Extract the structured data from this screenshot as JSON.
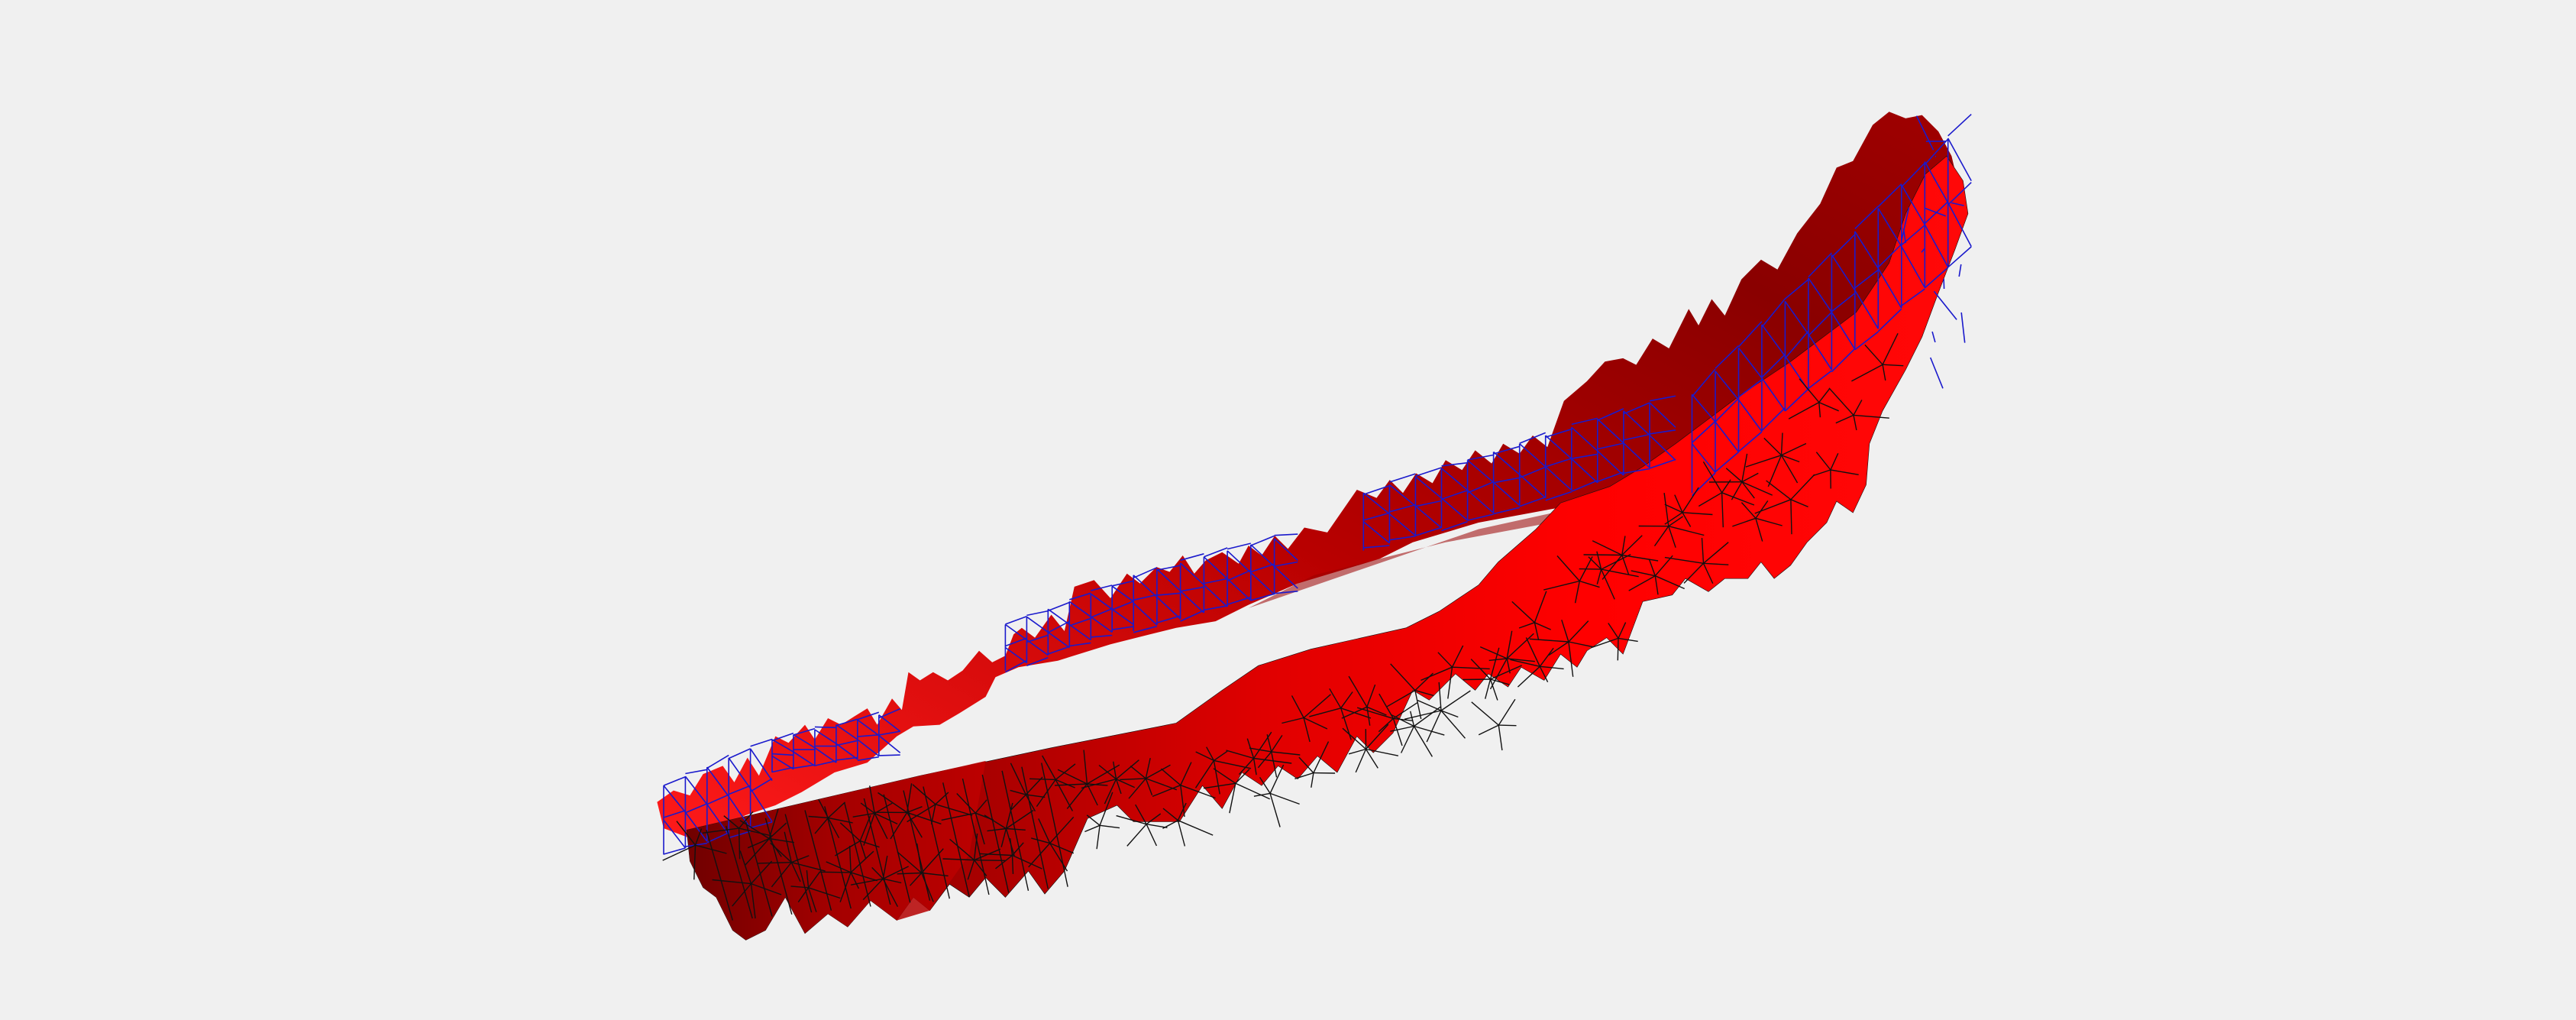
{
  "scene": {
    "description_label": "",
    "colors": {
      "background": "#f0f0f0",
      "surface_bright": "#ff0000",
      "surface_dark": "#8a0000",
      "surface_mid": "#c40000",
      "wireframe_back": "#1a1acc",
      "wireframe_front": "#111111"
    },
    "objects": [
      {
        "name": "deformed-ring-surface",
        "kind": "triangulated mesh"
      },
      {
        "name": "back-wireframe",
        "kind": "mesh edges"
      },
      {
        "name": "front-wireframe",
        "kind": "mesh edges"
      }
    ]
  }
}
